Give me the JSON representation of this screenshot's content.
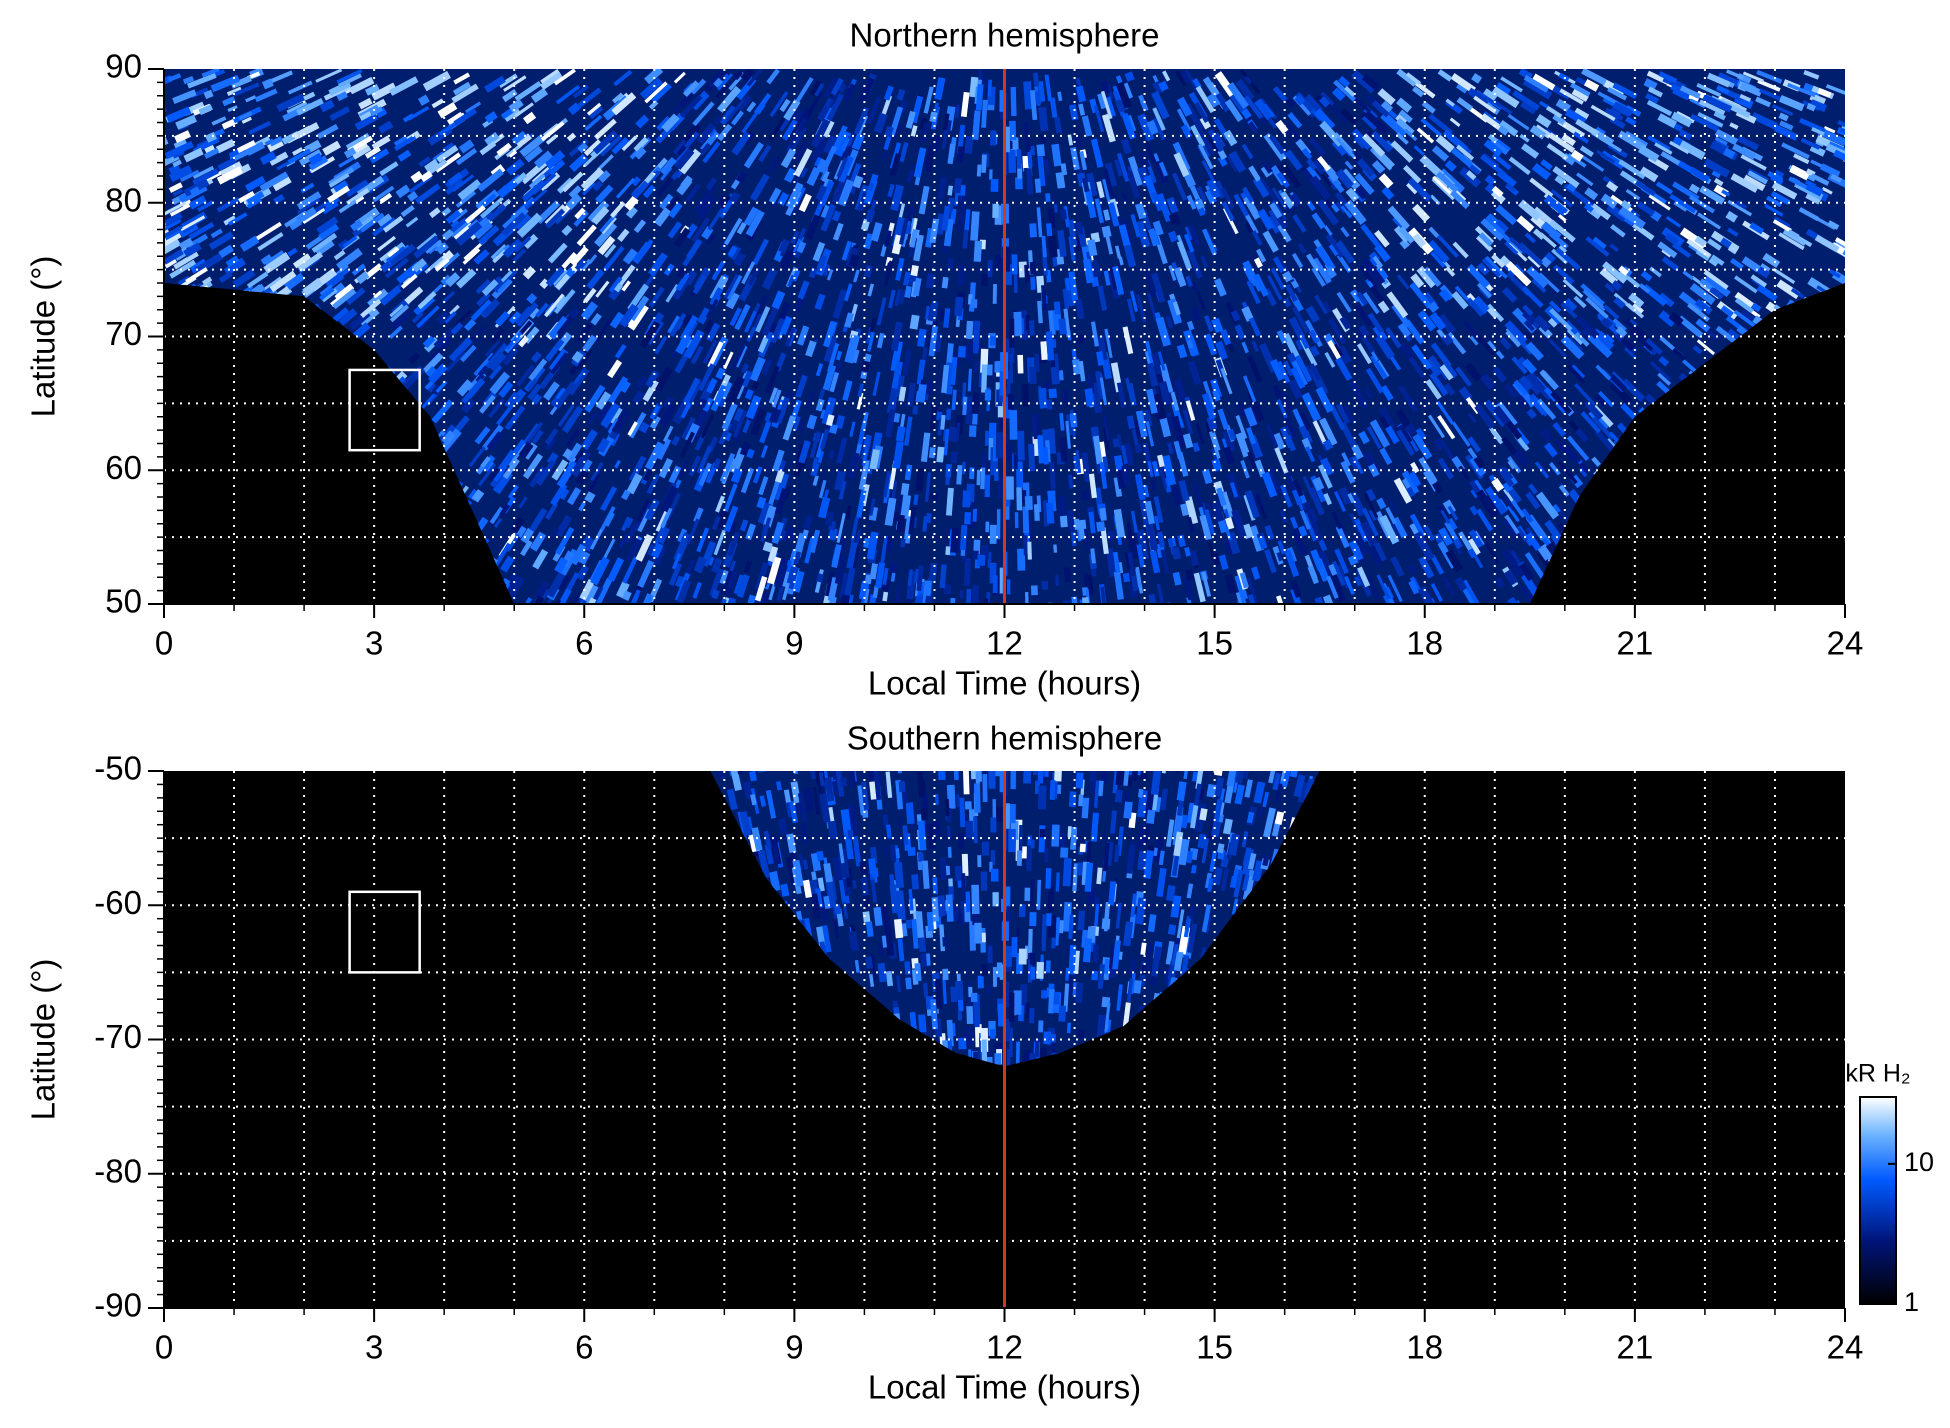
{
  "chart_data": [
    {
      "type": "heatmap",
      "title": "Northern hemisphere",
      "x_label": "Local Time (hours)",
      "y_label": "Latitude (°)",
      "xlim": [
        0,
        24
      ],
      "xticks": [
        0,
        3,
        6,
        9,
        12,
        15,
        18,
        21,
        24
      ],
      "ylim": [
        50,
        90
      ],
      "yticks": [
        50,
        60,
        70,
        80,
        90
      ],
      "grid": true,
      "grid_x_step": 1,
      "grid_y_step": 5,
      "minor_x_step": 1,
      "minor_y_step": 1,
      "reference_line": {
        "x": 12,
        "color": "#d23a1c"
      },
      "box": {
        "xlim": [
          2.65,
          3.65
        ],
        "ylim": [
          61.5,
          67.5
        ]
      },
      "coverage": {
        "x": [
          0,
          0,
          2,
          3,
          3.8,
          4.4,
          5,
          19.5,
          20.2,
          21,
          22,
          23,
          24,
          24
        ],
        "y": [
          90,
          74,
          73,
          69,
          64,
          57,
          50,
          50,
          58,
          64,
          68,
          72,
          74,
          90
        ]
      }
    },
    {
      "type": "heatmap",
      "title": "Southern hemisphere",
      "x_label": "Local Time (hours)",
      "y_label": "Latitude (°)",
      "xlim": [
        0,
        24
      ],
      "xticks": [
        0,
        3,
        6,
        9,
        12,
        15,
        18,
        21,
        24
      ],
      "ylim": [
        -90,
        -50
      ],
      "yticks": [
        -90,
        -80,
        -70,
        -60,
        -50
      ],
      "grid": true,
      "grid_x_step": 1,
      "grid_y_step": 5,
      "minor_x_step": 1,
      "minor_y_step": 1,
      "reference_line": {
        "x": 12,
        "color": "#d23a1c"
      },
      "box": {
        "xlim": [
          2.65,
          3.65
        ],
        "ylim": [
          -65,
          -59
        ]
      },
      "coverage": {
        "x": [
          7.8,
          8.6,
          9.5,
          10.5,
          11.3,
          12,
          12.8,
          13.7,
          14.8,
          15.8,
          16.5
        ],
        "y": [
          -50,
          -58,
          -64,
          -68.5,
          -71,
          -72,
          -71,
          -69,
          -64,
          -57,
          -50
        ]
      },
      "colorbar": {
        "title": "kR H₂",
        "lim": [
          1,
          30
        ],
        "ticks": [
          1,
          10
        ],
        "log": true
      }
    }
  ]
}
